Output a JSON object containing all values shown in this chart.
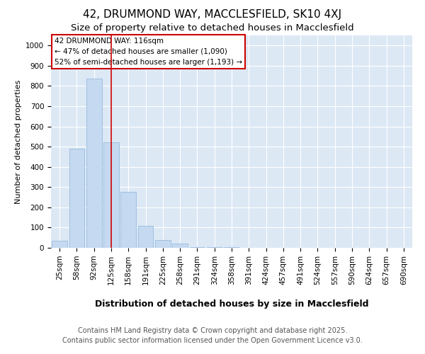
{
  "title1": "42, DRUMMOND WAY, MACCLESFIELD, SK10 4XJ",
  "title2": "Size of property relative to detached houses in Macclesfield",
  "xlabel": "Distribution of detached houses by size in Macclesfield",
  "ylabel": "Number of detached properties",
  "categories": [
    "25sqm",
    "58sqm",
    "92sqm",
    "125sqm",
    "158sqm",
    "191sqm",
    "225sqm",
    "258sqm",
    "291sqm",
    "324sqm",
    "358sqm",
    "391sqm",
    "424sqm",
    "457sqm",
    "491sqm",
    "524sqm",
    "557sqm",
    "590sqm",
    "624sqm",
    "657sqm",
    "690sqm"
  ],
  "values": [
    35,
    490,
    835,
    520,
    275,
    110,
    40,
    20,
    5,
    5,
    2,
    0,
    0,
    0,
    0,
    0,
    0,
    0,
    0,
    0,
    0
  ],
  "bar_color": "#c5d9f0",
  "bar_edge_color": "#8ab4d9",
  "red_line_x": 3.0,
  "annotation_text": "42 DRUMMOND WAY: 116sqm\n← 47% of detached houses are smaller (1,090)\n52% of semi-detached houses are larger (1,193) →",
  "annotation_box_color": "#ffffff",
  "annotation_border_color": "#cc0000",
  "ylim": [
    0,
    1050
  ],
  "yticks": [
    0,
    100,
    200,
    300,
    400,
    500,
    600,
    700,
    800,
    900,
    1000
  ],
  "background_color": "#ffffff",
  "plot_background": "#dde8f5",
  "footer_line1": "Contains HM Land Registry data © Crown copyright and database right 2025.",
  "footer_line2": "Contains public sector information licensed under the Open Government Licence v3.0.",
  "grid_color": "#ffffff",
  "title1_fontsize": 11,
  "title2_fontsize": 9.5,
  "xlabel_fontsize": 9,
  "ylabel_fontsize": 8,
  "tick_fontsize": 7.5,
  "annotation_fontsize": 7.5,
  "footer_fontsize": 7
}
